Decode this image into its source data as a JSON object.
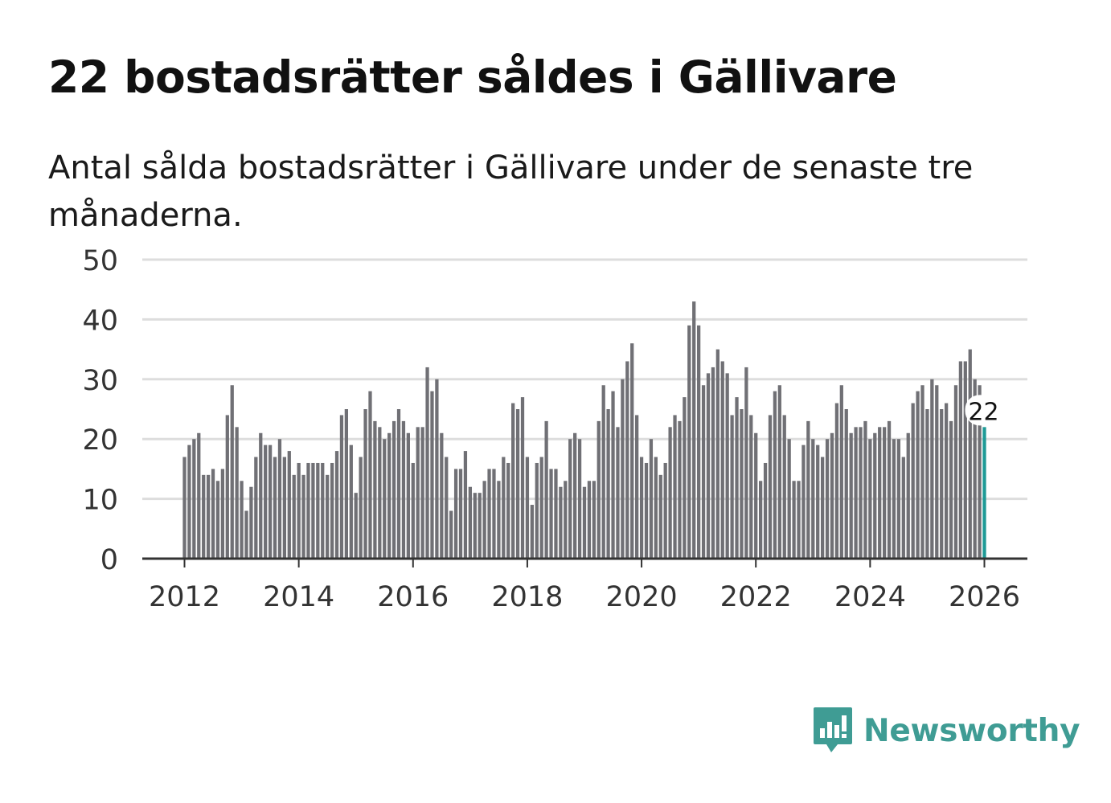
{
  "header": {
    "title": "22 bostadsrätter såldes i Gällivare",
    "subtitle": "Antal sålda bostadsrätter i Gällivare under de senaste tre månaderna."
  },
  "brand": {
    "name": "Newsworthy",
    "icon": "newsworthy-logo-icon",
    "color": "#3f9c94"
  },
  "colors": {
    "bar": "#707075",
    "highlight": "#1e9a96",
    "grid": "#dddddd",
    "axis": "#333333"
  },
  "chart_data": {
    "type": "bar",
    "title": "22 bostadsrätter såldes i Gällivare",
    "xlabel": "",
    "ylabel": "",
    "ylim": [
      0,
      50
    ],
    "yticks": [
      0,
      10,
      20,
      30,
      40,
      50
    ],
    "xticks": [
      "2012",
      "2014",
      "2016",
      "2018",
      "2020",
      "2022",
      "2024",
      "2026"
    ],
    "start": "2012-01",
    "frequency": "monthly",
    "grid": true,
    "highlight_label": "22",
    "values": [
      17,
      19,
      20,
      21,
      14,
      14,
      15,
      13,
      15,
      24,
      29,
      22,
      13,
      8,
      12,
      17,
      21,
      19,
      19,
      17,
      20,
      17,
      18,
      14,
      16,
      14,
      16,
      16,
      16,
      16,
      14,
      16,
      18,
      24,
      25,
      19,
      11,
      17,
      25,
      28,
      23,
      22,
      20,
      21,
      23,
      25,
      23,
      21,
      16,
      22,
      22,
      32,
      28,
      30,
      21,
      17,
      8,
      15,
      15,
      18,
      12,
      11,
      11,
      13,
      15,
      15,
      13,
      17,
      16,
      26,
      25,
      27,
      17,
      9,
      16,
      17,
      23,
      15,
      15,
      12,
      13,
      20,
      21,
      20,
      12,
      13,
      13,
      23,
      29,
      25,
      28,
      22,
      30,
      33,
      36,
      24,
      17,
      16,
      20,
      17,
      14,
      16,
      22,
      24,
      23,
      27,
      39,
      43,
      39,
      29,
      31,
      32,
      35,
      33,
      31,
      24,
      27,
      25,
      32,
      24,
      21,
      13,
      16,
      24,
      28,
      29,
      24,
      20,
      13,
      13,
      19,
      23,
      20,
      19,
      17,
      20,
      21,
      26,
      29,
      25,
      21,
      22,
      22,
      23,
      20,
      21,
      22,
      22,
      23,
      20,
      20,
      17,
      21,
      26,
      28,
      29,
      25,
      30,
      29,
      25,
      26,
      23,
      29,
      33,
      33,
      35,
      30,
      29,
      22
    ]
  }
}
